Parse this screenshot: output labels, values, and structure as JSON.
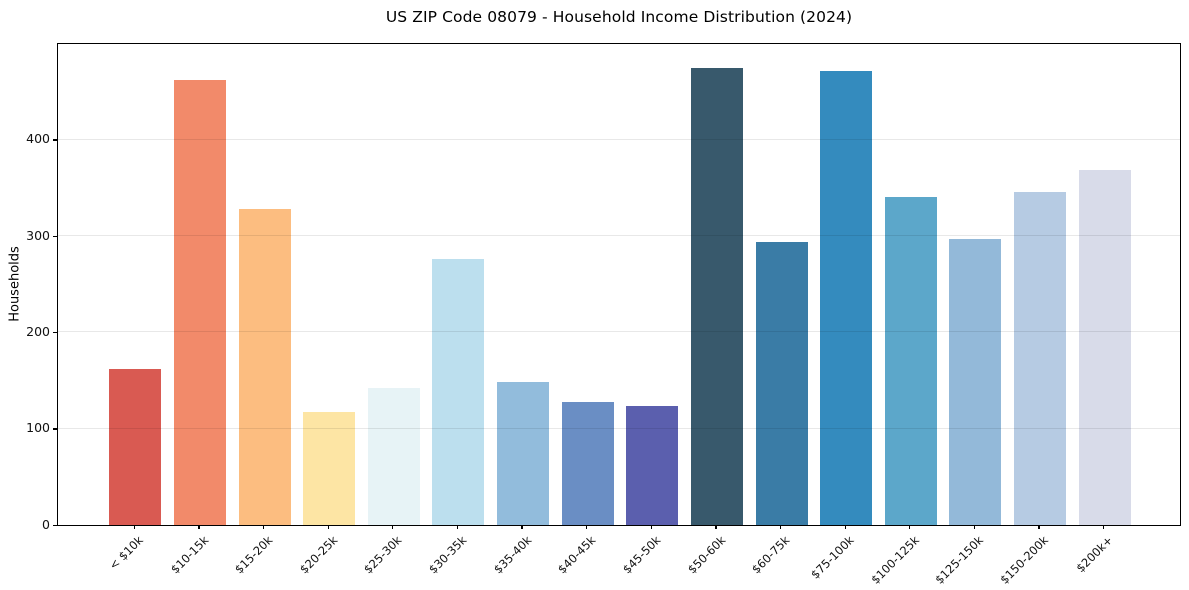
{
  "figure": {
    "title": "US ZIP Code 08079 - Household Income Distribution (2024)"
  },
  "chart_data": {
    "type": "bar",
    "title": "US ZIP Code 08079 - Household Income Distribution (2024)",
    "xlabel": "",
    "ylabel": "Households",
    "categories": [
      "< $10k",
      "$10-15k",
      "$15-20k",
      "$20-25k",
      "$25-30k",
      "$30-35k",
      "$35-40k",
      "$40-45k",
      "$45-50k",
      "$50-60k",
      "$60-75k",
      "$75-100k",
      "$100-125k",
      "$125-150k",
      "$150-200k",
      "$200k+"
    ],
    "values": [
      162,
      462,
      328,
      117,
      142,
      276,
      148,
      128,
      124,
      474,
      294,
      471,
      340,
      297,
      346,
      368
    ],
    "bar_colors": [
      "#d95a52",
      "#f28a6a",
      "#fcbd80",
      "#fde5a4",
      "#e7f3f6",
      "#bcdfee",
      "#92bcdc",
      "#6a8ec4",
      "#5b5fae",
      "#38596c",
      "#3a7ca6",
      "#348bbe",
      "#5ca7ca",
      "#93b9d9",
      "#b6cbe3",
      "#d8dbe9"
    ],
    "yticks": [
      0,
      100,
      200,
      300,
      400
    ],
    "ylim": [
      0,
      500
    ],
    "grid": "horizontal",
    "grid_color": "#e8e8e8",
    "legend": "none",
    "background": "#ffffff",
    "spine_color": "#000000"
  }
}
